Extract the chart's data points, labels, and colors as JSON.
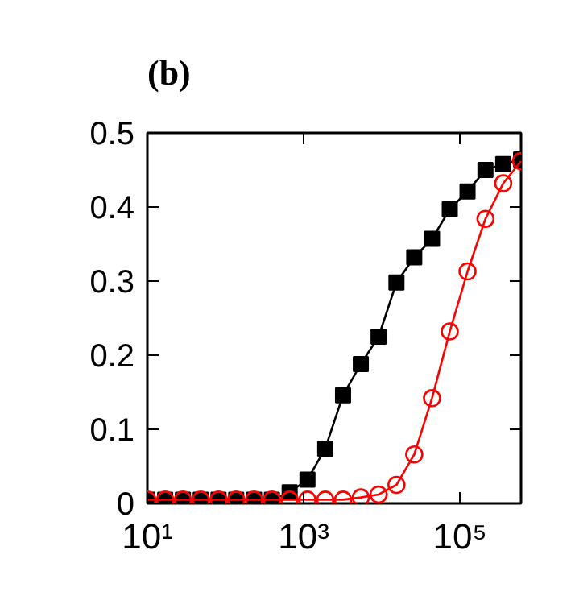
{
  "chart_data": {
    "type": "line",
    "title": "(b)",
    "log": "x",
    "line_style": "solid",
    "grid": false,
    "x": [
      10,
      16.9,
      28.5,
      48.2,
      81.4,
      137,
      232,
      392,
      662,
      1118,
      1889,
      3190,
      5390,
      9100,
      15400,
      26000,
      43900,
      74100,
      125000,
      212000,
      358000,
      605000
    ],
    "xlim": [
      10,
      605000
    ],
    "xticks": [
      {
        "value": 10,
        "label": "10¹"
      },
      {
        "value": 1000,
        "label": "10³"
      },
      {
        "value": 100000,
        "label": "10⁵"
      }
    ],
    "ylim": [
      0,
      0.5
    ],
    "yticks": [
      0,
      0.1,
      0.2,
      0.3,
      0.4,
      0.5
    ],
    "series": [
      {
        "color": "#000000",
        "marker": "square",
        "values": [
          0.005,
          0.005,
          0.005,
          0.005,
          0.005,
          0.005,
          0.005,
          0.005,
          0.015,
          0.032,
          0.074,
          0.146,
          0.188,
          0.225,
          0.298,
          0.332,
          0.357,
          0.397,
          0.421,
          0.45,
          0.458,
          0.464
        ]
      },
      {
        "color": "#ff0000",
        "marker": "circle",
        "values": [
          0.005,
          0.005,
          0.005,
          0.005,
          0.005,
          0.005,
          0.005,
          0.005,
          0.005,
          0.005,
          0.005,
          0.005,
          0.008,
          0.012,
          0.025,
          0.066,
          0.142,
          0.232,
          0.313,
          0.384,
          0.432,
          0.462
        ]
      }
    ]
  }
}
